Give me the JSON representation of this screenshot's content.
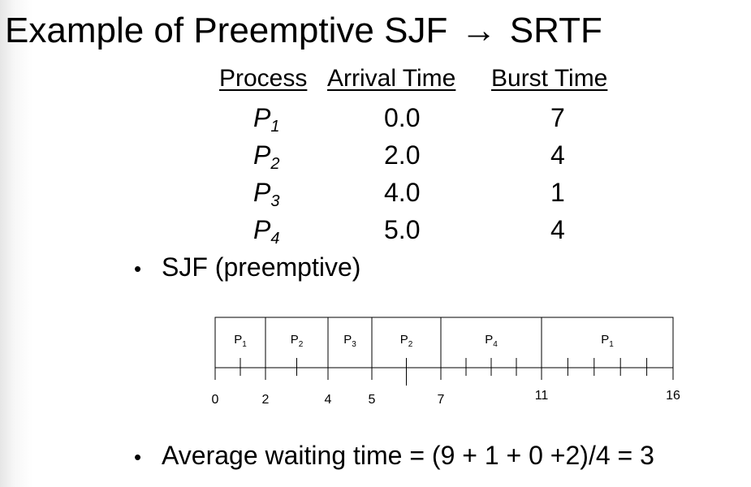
{
  "slide": {
    "title_left": "Example of Preemptive SJF",
    "arrow": "→",
    "title_right": "SRTF"
  },
  "table": {
    "headers": {
      "process": "Process",
      "arrival": "Arrival Time",
      "burst": "Burst Time"
    },
    "rows": [
      {
        "process": "P",
        "sub": "1",
        "arrival": "0.0",
        "burst": "7"
      },
      {
        "process": "P",
        "sub": "2",
        "arrival": "2.0",
        "burst": "4"
      },
      {
        "process": "P",
        "sub": "3",
        "arrival": "4.0",
        "burst": "1"
      },
      {
        "process": "P",
        "sub": "4",
        "arrival": "5.0",
        "burst": "4"
      }
    ]
  },
  "bullets": {
    "first": "SJF (preemptive)",
    "second": "Average waiting time = (9 + 1 + 0 +2)/4 = 3"
  },
  "gantt": {
    "segments": [
      {
        "label": "P",
        "sub": "1",
        "start": 0,
        "end": 2
      },
      {
        "label": "P",
        "sub": "2",
        "start": 2,
        "end": 4
      },
      {
        "label": "P",
        "sub": "3",
        "start": 4,
        "end": 5
      },
      {
        "label": "P",
        "sub": "2",
        "start": 5,
        "end": 7
      },
      {
        "label": "P",
        "sub": "4",
        "start": 7,
        "end": 11
      },
      {
        "label": "P",
        "sub": "1",
        "start": 11,
        "end": 16
      }
    ],
    "ticks": [
      1,
      3,
      6,
      8,
      9,
      10,
      12,
      13,
      14,
      15
    ],
    "time_labels": [
      "0",
      "2",
      "4",
      "5",
      "7",
      "11",
      "16"
    ],
    "time_values": [
      0,
      2,
      4,
      5,
      7,
      11,
      16
    ]
  }
}
